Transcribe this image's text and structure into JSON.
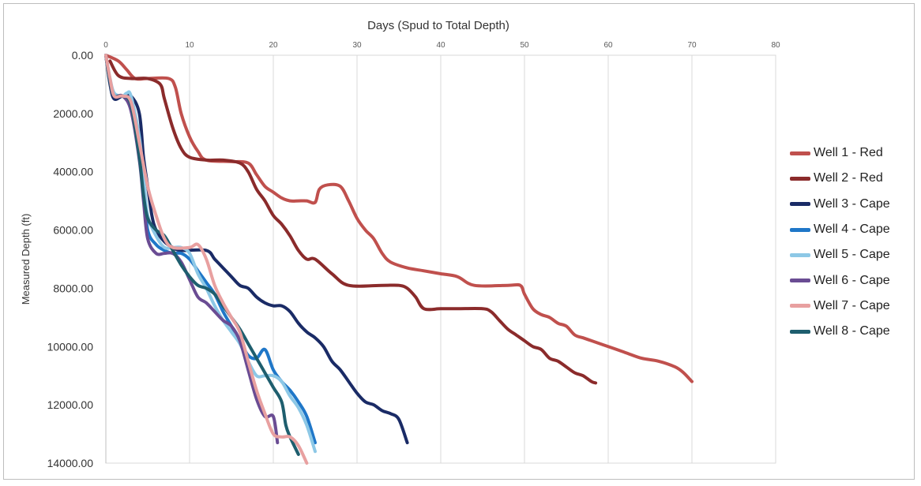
{
  "chart_data": {
    "type": "line",
    "title": "Days (Spud to Total Depth)",
    "xlabel": "Days (Spud to Total Depth)",
    "ylabel": "Measured Depth (ft)",
    "xlim": [
      0,
      80
    ],
    "ylim": [
      0,
      14000
    ],
    "y_inverted": true,
    "x_axis_position": "top",
    "x_ticks": [
      0,
      10,
      20,
      30,
      40,
      50,
      60,
      70,
      80
    ],
    "x_tick_labels": [
      "0",
      "10",
      "20",
      "30",
      "40",
      "50",
      "60",
      "70",
      "80"
    ],
    "y_ticks": [
      0,
      2000,
      4000,
      6000,
      8000,
      10000,
      12000,
      14000
    ],
    "y_tick_labels": [
      "0.00",
      "2000.00",
      "4000.00",
      "6000.00",
      "8000.00",
      "10000.00",
      "12000.00",
      "14000.00"
    ],
    "grid": "vertical",
    "legend_position": "right",
    "series": [
      {
        "name": "Well 1 - Red",
        "color": "#C0504D",
        "points": [
          [
            0,
            0
          ],
          [
            1.5,
            200
          ],
          [
            2.5,
            500
          ],
          [
            3.5,
            800
          ],
          [
            5,
            800
          ],
          [
            7.5,
            800
          ],
          [
            8.3,
            1100
          ],
          [
            9,
            2000
          ],
          [
            10,
            2800
          ],
          [
            11,
            3300
          ],
          [
            12,
            3600
          ],
          [
            15,
            3650
          ],
          [
            17,
            3700
          ],
          [
            18,
            4100
          ],
          [
            19,
            4500
          ],
          [
            20,
            4700
          ],
          [
            21,
            4900
          ],
          [
            22,
            5000
          ],
          [
            23,
            5000
          ],
          [
            24,
            5000
          ],
          [
            25,
            5050
          ],
          [
            25.5,
            4600
          ],
          [
            26.5,
            4450
          ],
          [
            28,
            4500
          ],
          [
            29,
            5000
          ],
          [
            30,
            5600
          ],
          [
            31,
            6000
          ],
          [
            32,
            6300
          ],
          [
            33,
            6800
          ],
          [
            34,
            7100
          ],
          [
            36,
            7300
          ],
          [
            38,
            7400
          ],
          [
            40,
            7500
          ],
          [
            42,
            7600
          ],
          [
            44,
            7900
          ],
          [
            48,
            7900
          ],
          [
            49.5,
            7900
          ],
          [
            50,
            8200
          ],
          [
            51,
            8700
          ],
          [
            52,
            8900
          ],
          [
            53,
            9000
          ],
          [
            54,
            9200
          ],
          [
            55,
            9300
          ],
          [
            56,
            9600
          ],
          [
            57,
            9700
          ],
          [
            58,
            9800
          ],
          [
            60,
            10000
          ],
          [
            62,
            10200
          ],
          [
            64,
            10400
          ],
          [
            66,
            10500
          ],
          [
            68,
            10700
          ],
          [
            69,
            10900
          ],
          [
            70,
            11200
          ]
        ]
      },
      {
        "name": "Well 2 - Red",
        "color": "#8B2B2B",
        "points": [
          [
            0.5,
            200
          ],
          [
            1.5,
            700
          ],
          [
            3,
            800
          ],
          [
            5,
            800
          ],
          [
            6.5,
            1000
          ],
          [
            7,
            1500
          ],
          [
            8,
            2500
          ],
          [
            9,
            3200
          ],
          [
            10,
            3500
          ],
          [
            12,
            3600
          ],
          [
            14,
            3600
          ],
          [
            16,
            3700
          ],
          [
            17,
            4000
          ],
          [
            18,
            4600
          ],
          [
            19,
            5000
          ],
          [
            20,
            5500
          ],
          [
            21,
            5800
          ],
          [
            22,
            6200
          ],
          [
            23,
            6700
          ],
          [
            24,
            7000
          ],
          [
            25,
            7000
          ],
          [
            27,
            7500
          ],
          [
            29,
            7900
          ],
          [
            33,
            7900
          ],
          [
            35,
            7900
          ],
          [
            36,
            8000
          ],
          [
            37,
            8300
          ],
          [
            38,
            8700
          ],
          [
            40,
            8700
          ],
          [
            42,
            8700
          ],
          [
            45,
            8700
          ],
          [
            46,
            8800
          ],
          [
            47,
            9100
          ],
          [
            48,
            9400
          ],
          [
            49,
            9600
          ],
          [
            50,
            9800
          ],
          [
            51,
            10000
          ],
          [
            52,
            10100
          ],
          [
            53,
            10400
          ],
          [
            54,
            10500
          ],
          [
            55,
            10700
          ],
          [
            56,
            10900
          ],
          [
            57,
            11000
          ],
          [
            58,
            11200
          ],
          [
            58.5,
            11250
          ]
        ]
      },
      {
        "name": "Well 3 - Cape",
        "color": "#1A2B66",
        "points": [
          [
            0,
            0
          ],
          [
            0.5,
            1000
          ],
          [
            1,
            1500
          ],
          [
            2,
            1400
          ],
          [
            3,
            1400
          ],
          [
            4,
            2000
          ],
          [
            4.5,
            3500
          ],
          [
            5,
            4500
          ],
          [
            5.5,
            5500
          ],
          [
            6,
            6000
          ],
          [
            7,
            6400
          ],
          [
            8,
            6600
          ],
          [
            9,
            6700
          ],
          [
            12,
            6700
          ],
          [
            13,
            7000
          ],
          [
            14,
            7300
          ],
          [
            15,
            7600
          ],
          [
            16,
            7900
          ],
          [
            17,
            8000
          ],
          [
            18,
            8300
          ],
          [
            19,
            8500
          ],
          [
            20,
            8600
          ],
          [
            21,
            8600
          ],
          [
            22,
            8800
          ],
          [
            23,
            9200
          ],
          [
            24,
            9500
          ],
          [
            25,
            9700
          ],
          [
            26,
            10000
          ],
          [
            27,
            10500
          ],
          [
            28,
            10800
          ],
          [
            29,
            11200
          ],
          [
            30,
            11600
          ],
          [
            31,
            11900
          ],
          [
            32,
            12000
          ],
          [
            33,
            12200
          ],
          [
            34,
            12300
          ],
          [
            35,
            12500
          ],
          [
            36,
            13300
          ]
        ]
      },
      {
        "name": "Well 4 - Cape",
        "color": "#1F77C8",
        "points": [
          [
            0,
            0
          ],
          [
            0.5,
            900
          ],
          [
            1,
            1400
          ],
          [
            2,
            1400
          ],
          [
            3,
            1700
          ],
          [
            4,
            3000
          ],
          [
            4.5,
            4500
          ],
          [
            5,
            6000
          ],
          [
            6,
            6500
          ],
          [
            7,
            6700
          ],
          [
            8,
            6800
          ],
          [
            9,
            6800
          ],
          [
            10,
            7000
          ],
          [
            11,
            7400
          ],
          [
            12,
            7800
          ],
          [
            13,
            8200
          ],
          [
            14,
            8800
          ],
          [
            15,
            9300
          ],
          [
            16,
            9800
          ],
          [
            17,
            10300
          ],
          [
            18,
            10400
          ],
          [
            19,
            10100
          ],
          [
            20,
            10800
          ],
          [
            21,
            11200
          ],
          [
            22,
            11500
          ],
          [
            23,
            11900
          ],
          [
            24,
            12400
          ],
          [
            25,
            13300
          ]
        ]
      },
      {
        "name": "Well 5 - Cape",
        "color": "#8DC8E6",
        "points": [
          [
            0,
            0
          ],
          [
            0.5,
            800
          ],
          [
            1,
            1300
          ],
          [
            2,
            1400
          ],
          [
            2.5,
            1300
          ],
          [
            3,
            1400
          ],
          [
            4,
            2800
          ],
          [
            4.5,
            4200
          ],
          [
            5,
            5500
          ],
          [
            6,
            6200
          ],
          [
            7,
            6600
          ],
          [
            8,
            6600
          ],
          [
            9,
            6600
          ],
          [
            10,
            6800
          ],
          [
            11,
            7500
          ],
          [
            12,
            8000
          ],
          [
            13,
            8600
          ],
          [
            14,
            9100
          ],
          [
            15,
            9500
          ],
          [
            16,
            9900
          ],
          [
            17,
            10500
          ],
          [
            18,
            11000
          ],
          [
            19,
            11000
          ],
          [
            20,
            11000
          ],
          [
            21,
            11200
          ],
          [
            22,
            11700
          ],
          [
            23,
            12100
          ],
          [
            24,
            12700
          ],
          [
            25,
            13600
          ]
        ]
      },
      {
        "name": "Well 6 - Cape",
        "color": "#6A4C93",
        "points": [
          [
            0,
            0
          ],
          [
            0.5,
            900
          ],
          [
            1,
            1400
          ],
          [
            2,
            1400
          ],
          [
            3,
            1900
          ],
          [
            4,
            3600
          ],
          [
            4.5,
            5000
          ],
          [
            5,
            6300
          ],
          [
            6,
            6800
          ],
          [
            7,
            6800
          ],
          [
            8,
            6800
          ],
          [
            9,
            7100
          ],
          [
            10,
            7700
          ],
          [
            11,
            8300
          ],
          [
            12,
            8500
          ],
          [
            13,
            8800
          ],
          [
            14,
            9100
          ],
          [
            15,
            9300
          ],
          [
            16,
            9800
          ],
          [
            17,
            10800
          ],
          [
            18,
            11800
          ],
          [
            19,
            12400
          ],
          [
            20,
            12400
          ],
          [
            20.5,
            13300
          ]
        ]
      },
      {
        "name": "Well 7 - Cape",
        "color": "#E8A0A0",
        "points": [
          [
            0,
            0
          ],
          [
            0.5,
            800
          ],
          [
            1,
            1400
          ],
          [
            2,
            1400
          ],
          [
            3,
            1600
          ],
          [
            4,
            3000
          ],
          [
            5,
            4500
          ],
          [
            6,
            5500
          ],
          [
            7,
            6300
          ],
          [
            8,
            6600
          ],
          [
            10,
            6600
          ],
          [
            11,
            6500
          ],
          [
            12,
            7000
          ],
          [
            13,
            7900
          ],
          [
            14,
            8500
          ],
          [
            15,
            9000
          ],
          [
            16,
            9500
          ],
          [
            17,
            10500
          ],
          [
            18,
            11500
          ],
          [
            19,
            12300
          ],
          [
            20,
            13000
          ],
          [
            21,
            13100
          ],
          [
            22,
            13100
          ],
          [
            23,
            13400
          ],
          [
            24,
            14000
          ]
        ]
      },
      {
        "name": "Well 8 - Cape",
        "color": "#1E5E6E",
        "points": [
          [
            0,
            0
          ],
          [
            0.5,
            900
          ],
          [
            1,
            1400
          ],
          [
            2,
            1400
          ],
          [
            3,
            1700
          ],
          [
            4,
            3500
          ],
          [
            4.5,
            4800
          ],
          [
            5,
            5600
          ],
          [
            6,
            6000
          ],
          [
            7,
            6200
          ],
          [
            8,
            6700
          ],
          [
            9,
            7200
          ],
          [
            10,
            7600
          ],
          [
            11,
            7900
          ],
          [
            12,
            8000
          ],
          [
            13,
            8200
          ],
          [
            14,
            8600
          ],
          [
            15,
            9000
          ],
          [
            16,
            9400
          ],
          [
            17,
            9900
          ],
          [
            18,
            10400
          ],
          [
            19,
            10900
          ],
          [
            20,
            11400
          ],
          [
            21,
            11900
          ],
          [
            21.5,
            12700
          ],
          [
            22,
            13100
          ],
          [
            23,
            13700
          ]
        ]
      }
    ]
  }
}
